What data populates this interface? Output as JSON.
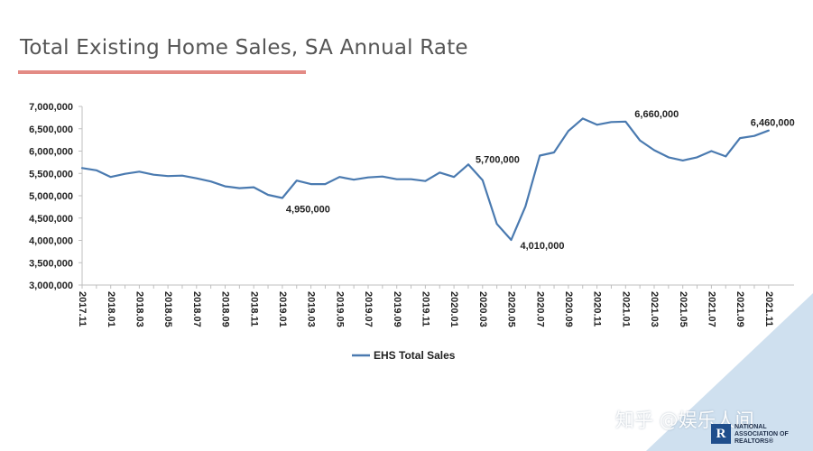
{
  "page": {
    "title": "Total Existing Home Sales, SA Annual Rate",
    "watermark": "知乎 @娱乐人间",
    "logo": {
      "mark": "R",
      "text": "NATIONAL\nASSOCIATION OF\nREALTORS®"
    }
  },
  "colors": {
    "line": "#4a7ab0",
    "title_underline": "#e38b85",
    "corner": "#cfe0ef",
    "axis": "#bfbfbf",
    "text": "#222222"
  },
  "chart_data": {
    "type": "line",
    "title": "",
    "xlabel": "",
    "ylabel": "",
    "ylim": [
      3000000,
      7000000
    ],
    "y_ticks": [
      "3,000,000",
      "3,500,000",
      "4,000,000",
      "4,500,000",
      "5,000,000",
      "5,500,000",
      "6,000,000",
      "6,500,000",
      "7,000,000"
    ],
    "grid": false,
    "legend_position": "bottom",
    "x": [
      "2017.11",
      "2017.12",
      "2018.01",
      "2018.02",
      "2018.03",
      "2018.04",
      "2018.05",
      "2018.06",
      "2018.07",
      "2018.08",
      "2018.09",
      "2018.10",
      "2018.11",
      "2018.12",
      "2019.01",
      "2019.02",
      "2019.03",
      "2019.04",
      "2019.05",
      "2019.06",
      "2019.07",
      "2019.08",
      "2019.09",
      "2019.10",
      "2019.11",
      "2019.12",
      "2020.01",
      "2020.02",
      "2020.03",
      "2020.04",
      "2020.05",
      "2020.06",
      "2020.07",
      "2020.08",
      "2020.09",
      "2020.10",
      "2020.11",
      "2020.12",
      "2021.01",
      "2021.02",
      "2021.03",
      "2021.04",
      "2021.05",
      "2021.06",
      "2021.07",
      "2021.08",
      "2021.09",
      "2021.10",
      "2021.11"
    ],
    "x_tick_labels": [
      "2017.11",
      "2018.01",
      "2018.03",
      "2018.05",
      "2018.07",
      "2018.09",
      "2018.11",
      "2019.01",
      "2019.03",
      "2019.05",
      "2019.07",
      "2019.09",
      "2019.11",
      "2020.01",
      "2020.03",
      "2020.05",
      "2020.07",
      "2020.09",
      "2020.11",
      "2021.01",
      "2021.03",
      "2021.05",
      "2021.07",
      "2021.09",
      "2021.11"
    ],
    "series": [
      {
        "name": "EHS Total Sales",
        "values": [
          5620000,
          5570000,
          5420000,
          5490000,
          5540000,
          5470000,
          5440000,
          5450000,
          5390000,
          5320000,
          5210000,
          5170000,
          5190000,
          5020000,
          4950000,
          5340000,
          5260000,
          5260000,
          5420000,
          5360000,
          5410000,
          5430000,
          5370000,
          5370000,
          5330000,
          5520000,
          5420000,
          5700000,
          5350000,
          4370000,
          4010000,
          4760000,
          5900000,
          5970000,
          6450000,
          6730000,
          6590000,
          6650000,
          6660000,
          6240000,
          6020000,
          5860000,
          5790000,
          5860000,
          6000000,
          5880000,
          6290000,
          6340000,
          6460000
        ]
      }
    ],
    "annotations": [
      {
        "x": "2019.01",
        "label": "4,950,000"
      },
      {
        "x": "2020.02",
        "label": "5,700,000"
      },
      {
        "x": "2020.05",
        "label": "4,010,000"
      },
      {
        "x": "2021.01",
        "label": "6,660,000"
      },
      {
        "x": "2021.11",
        "label": "6,460,000"
      }
    ]
  }
}
